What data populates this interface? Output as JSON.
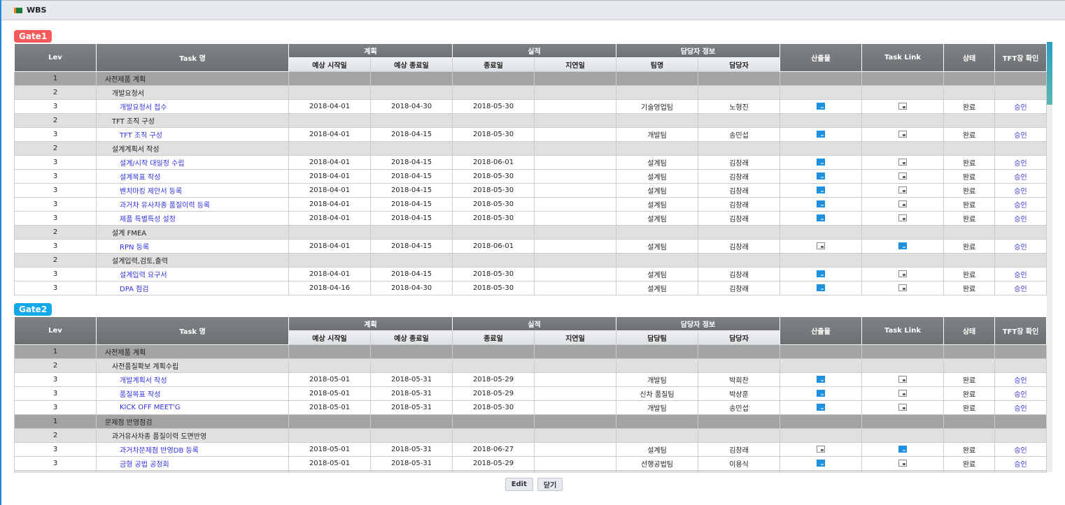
{
  "window": {
    "title": "WBS"
  },
  "headers": {
    "lev": "Lev",
    "task": "Task 명",
    "plan": "계획",
    "plan_start": "예상 시작일",
    "plan_end": "예상 종료일",
    "actual": "실적",
    "actual_end": "종료일",
    "delay": "지연일",
    "owner_info": "담당자 정보",
    "owner": "담당자",
    "deliverable": "산출물",
    "task_link": "Task Link",
    "status": "상태",
    "tft": "TFT장 확인"
  },
  "gates": [
    {
      "label": "Gate1",
      "color": "#f55a5a",
      "team_header": "팀명",
      "rows": [
        {
          "lev": "1",
          "task": "사전제품 계획"
        },
        {
          "lev": "2",
          "task": "개발요청서"
        },
        {
          "lev": "3",
          "task": "개발요청서 접수",
          "start": "2018-04-01",
          "end": "2018-04-30",
          "done": "2018-05-30",
          "delay": "",
          "team": "기술영업팀",
          "owner": "노형진",
          "deliverable": "folder-filled",
          "link": "folder-empty",
          "status": "완료",
          "tft": "승인"
        },
        {
          "lev": "2",
          "task": "TFT 조직 구성"
        },
        {
          "lev": "3",
          "task": "TFT 조직 구성",
          "start": "2018-04-01",
          "end": "2018-04-15",
          "done": "2018-05-30",
          "delay": "",
          "team": "개발팀",
          "owner": "송민섭",
          "deliverable": "folder-filled",
          "link": "folder-empty",
          "status": "완료",
          "tft": "승인"
        },
        {
          "lev": "2",
          "task": "설계계획서 작성"
        },
        {
          "lev": "3",
          "task": "설계/시작 대일정 수립",
          "start": "2018-04-01",
          "end": "2018-04-15",
          "done": "2018-06-01",
          "delay": "",
          "team": "설계팀",
          "owner": "김창래",
          "deliverable": "folder-filled",
          "link": "folder-empty",
          "status": "완료",
          "tft": "승인"
        },
        {
          "lev": "3",
          "task": "설계목표 작성",
          "start": "2018-04-01",
          "end": "2018-04-15",
          "done": "2018-05-30",
          "delay": "",
          "team": "설계팀",
          "owner": "김창래",
          "deliverable": "folder-filled",
          "link": "folder-empty",
          "status": "완료",
          "tft": "승인"
        },
        {
          "lev": "3",
          "task": "벤치마킹 제안서 등록",
          "start": "2018-04-01",
          "end": "2018-04-15",
          "done": "2018-05-30",
          "delay": "",
          "team": "설계팀",
          "owner": "김창래",
          "deliverable": "folder-filled",
          "link": "folder-empty",
          "status": "완료",
          "tft": "승인"
        },
        {
          "lev": "3",
          "task": "과거차 유사차종 품질이력 등록",
          "start": "2018-04-01",
          "end": "2018-04-15",
          "done": "2018-05-30",
          "delay": "",
          "team": "설계팀",
          "owner": "김창래",
          "deliverable": "folder-filled",
          "link": "folder-empty",
          "status": "완료",
          "tft": "승인"
        },
        {
          "lev": "3",
          "task": "제품 특별특성 설정",
          "start": "2018-04-01",
          "end": "2018-04-15",
          "done": "2018-05-30",
          "delay": "",
          "team": "설계팀",
          "owner": "김창래",
          "deliverable": "folder-filled",
          "link": "folder-empty",
          "status": "완료",
          "tft": "승인"
        },
        {
          "lev": "2",
          "task": "설계 FMEA"
        },
        {
          "lev": "3",
          "task": "RPN 등록",
          "start": "2018-04-01",
          "end": "2018-04-15",
          "done": "2018-06-01",
          "delay": "",
          "team": "설계팀",
          "owner": "김창래",
          "deliverable": "folder-empty",
          "link": "folder-filled",
          "status": "완료",
          "tft": "승인"
        },
        {
          "lev": "2",
          "task": "설계입력,검토,출력"
        },
        {
          "lev": "3",
          "task": "설계입력 요구서",
          "start": "2018-04-01",
          "end": "2018-04-15",
          "done": "2018-05-30",
          "delay": "",
          "team": "설계팀",
          "owner": "김창래",
          "deliverable": "folder-filled",
          "link": "folder-empty",
          "status": "완료",
          "tft": "승인"
        },
        {
          "lev": "3",
          "task": "DPA 점검",
          "start": "2018-04-16",
          "end": "2018-04-30",
          "done": "2018-05-30",
          "delay": "",
          "team": "설계팀",
          "owner": "김창래",
          "deliverable": "folder-filled",
          "link": "folder-empty",
          "status": "완료",
          "tft": "승인"
        }
      ]
    },
    {
      "label": "Gate2",
      "color": "#12a8ea",
      "team_header": "담당팀",
      "rows": [
        {
          "lev": "1",
          "task": "사전제품 계획"
        },
        {
          "lev": "2",
          "task": "사전품질확보 계획수립"
        },
        {
          "lev": "3",
          "task": "개발계획서 작성",
          "start": "2018-05-01",
          "end": "2018-05-31",
          "done": "2018-05-29",
          "delay": "",
          "team": "개발팀",
          "owner": "박희찬",
          "deliverable": "folder-filled",
          "link": "folder-empty",
          "status": "완료",
          "tft": "승인"
        },
        {
          "lev": "3",
          "task": "품질목표 작성",
          "start": "2018-05-01",
          "end": "2018-05-31",
          "done": "2018-05-29",
          "delay": "",
          "team": "신차 품질팀",
          "owner": "박상훈",
          "deliverable": "folder-filled",
          "link": "folder-empty",
          "status": "완료",
          "tft": "승인"
        },
        {
          "lev": "3",
          "task": "KICK OFF MEET'G",
          "start": "2018-05-01",
          "end": "2018-05-31",
          "done": "2018-05-30",
          "delay": "",
          "team": "개발팀",
          "owner": "송민섭",
          "deliverable": "folder-filled",
          "link": "folder-empty",
          "status": "완료",
          "tft": "승인"
        },
        {
          "lev": "1",
          "task": "문제점 반영점검"
        },
        {
          "lev": "2",
          "task": "과거유사차종 품질이력 도면반영"
        },
        {
          "lev": "3",
          "task": "과거차문제점 반영DB 등록",
          "start": "2018-05-01",
          "end": "2018-05-31",
          "done": "2018-06-27",
          "delay": "",
          "team": "설계팀",
          "owner": "김창래",
          "deliverable": "folder-empty",
          "link": "folder-filled",
          "status": "완료",
          "tft": "승인"
        },
        {
          "lev": "3",
          "task": "금형 공법 공청회",
          "start": "2018-05-01",
          "end": "2018-05-31",
          "done": "2018-05-29",
          "delay": "",
          "team": "선행공법팀",
          "owner": "이용식",
          "deliverable": "folder-filled",
          "link": "folder-empty",
          "status": "완료",
          "tft": "승인"
        },
        {
          "lev": "2",
          "task": ""
        }
      ]
    }
  ],
  "buttons": {
    "edit": "Edit",
    "close": "닫기"
  }
}
